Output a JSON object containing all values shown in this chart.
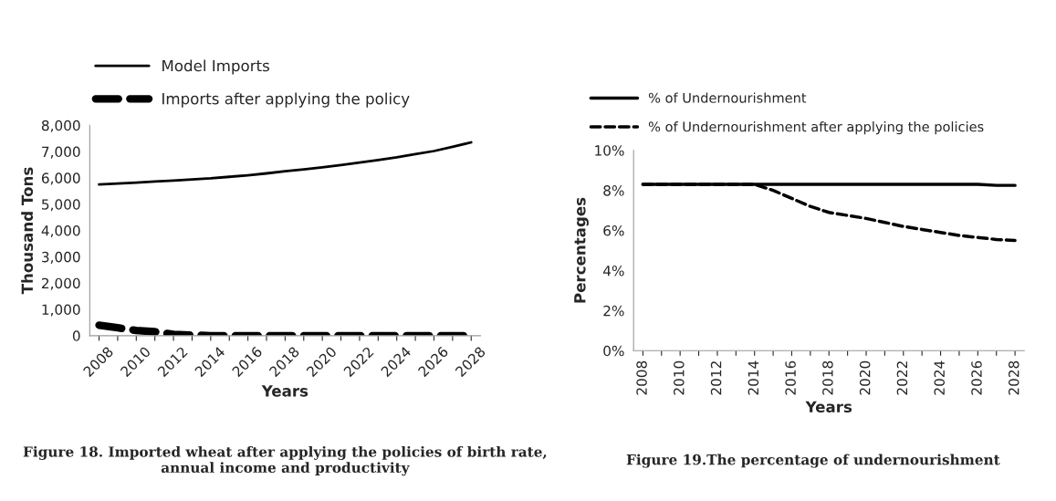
{
  "chart_data": [
    {
      "type": "line",
      "xlabel": "Years",
      "ylabel": "Thousand Tons",
      "legend": "top left",
      "grid": false,
      "categories": [
        "2008",
        null,
        "2010",
        null,
        "2012",
        null,
        "2014",
        null,
        "2016",
        null,
        "2018",
        null,
        "2020",
        null,
        "2022",
        null,
        "2024",
        null,
        "2026",
        null,
        "2028"
      ],
      "series": [
        {
          "name": "Model Imports",
          "color": "#000000",
          "line_style": "solid",
          "values": [
            5750,
            5780,
            5820,
            5860,
            5900,
            5940,
            5980,
            6040,
            6100,
            6170,
            6250,
            6320,
            6400,
            6490,
            6580,
            6680,
            6780,
            6900,
            7020,
            7180,
            7350
          ]
        },
        {
          "name": "Imports after applying the policy",
          "color": "#000000",
          "line_style": "dashed",
          "values": [
            400,
            300,
            200,
            150,
            50,
            20,
            0,
            0,
            0,
            0,
            0,
            0,
            0,
            0,
            0,
            0,
            0,
            0,
            0,
            0,
            0
          ]
        }
      ],
      "ylim": [
        0,
        8000
      ],
      "yticks": [
        0,
        {
          "value": 1000,
          "label": "1,000"
        },
        {
          "value": 2000,
          "label": "2,000"
        },
        {
          "value": 3000,
          "label": "3,000"
        },
        {
          "value": 4000,
          "label": "4,000"
        },
        {
          "value": 5000,
          "label": "5,000"
        },
        {
          "value": 6000,
          "label": "6,000"
        },
        {
          "value": 7000,
          "label": "7,000"
        },
        {
          "value": 8000,
          "label": "8,000"
        }
      ],
      "annotations": [
        "Figure 18. Imported wheat after applying the policies of birth rate, annual income and productivity"
      ]
    },
    {
      "type": "line",
      "xlabel": "Years",
      "ylabel": "Percentages",
      "legend": "top left",
      "grid": false,
      "categories": [
        "2008",
        null,
        "2010",
        null,
        "2012",
        null,
        "2014",
        null,
        "2016",
        null,
        "2018",
        null,
        "2020",
        null,
        "2022",
        null,
        "2024",
        null,
        "2026",
        null,
        "2028"
      ],
      "series": [
        {
          "name": "% of Undernourishment",
          "color": "#000000",
          "line_style": "solid",
          "values": [
            8.3,
            8.3,
            8.3,
            8.3,
            8.3,
            8.3,
            8.3,
            8.3,
            8.3,
            8.3,
            8.3,
            8.3,
            8.3,
            8.3,
            8.3,
            8.3,
            8.3,
            8.3,
            8.3,
            8.25,
            8.25
          ]
        },
        {
          "name": "% of Undernourishment after applying the policies",
          "color": "#000000",
          "line_style": "dashed",
          "values": [
            8.3,
            8.3,
            8.3,
            8.3,
            8.3,
            8.3,
            8.3,
            8.0,
            7.6,
            7.2,
            6.9,
            6.75,
            6.6,
            6.4,
            6.2,
            6.05,
            5.9,
            5.75,
            5.65,
            5.55,
            5.5
          ]
        }
      ],
      "ylim": [
        0,
        10
      ],
      "yticks": [
        {
          "value": 0,
          "label": "0%"
        },
        {
          "value": 2,
          "label": "2%"
        },
        {
          "value": 4,
          "label": "4%"
        },
        {
          "value": 6,
          "label": "6%"
        },
        {
          "value": 8,
          "label": "8%"
        },
        {
          "value": 10,
          "label": "10%"
        }
      ],
      "annotations": [
        "Figure 19.The percentage of undernourishment"
      ]
    }
  ]
}
